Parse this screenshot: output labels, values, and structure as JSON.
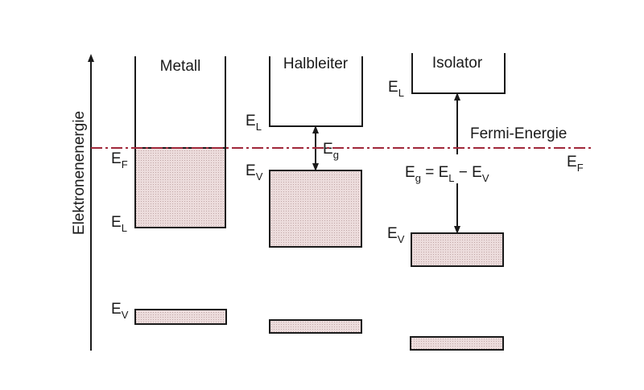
{
  "axis": {
    "label": "Elektronenenergie"
  },
  "columns": {
    "metal": {
      "title": "Metall",
      "ef_label": {
        "main": "E",
        "sub": "F"
      },
      "el_label": {
        "main": "E",
        "sub": "L"
      },
      "ev_label": {
        "main": "E",
        "sub": "V"
      }
    },
    "semiconductor": {
      "title": "Halbleiter",
      "el_label": {
        "main": "E",
        "sub": "L"
      },
      "ev_label": {
        "main": "E",
        "sub": "V"
      },
      "gap_label": {
        "main": "E",
        "sub": "g"
      }
    },
    "insulator": {
      "title": "Isolator",
      "el_label": {
        "main": "E",
        "sub": "L"
      },
      "ev_label": {
        "main": "E",
        "sub": "V"
      },
      "gap_equation": {
        "e1": "E",
        "s1": "g",
        "eq": " = ",
        "e2": "E",
        "s2": "L",
        "minus": " − ",
        "e3": "E",
        "s3": "V"
      }
    }
  },
  "fermi": {
    "label": "Fermi-Energie",
    "ef_label": {
      "main": "E",
      "sub": "F"
    }
  },
  "colors": {
    "band_fill": "#ecdcdc",
    "fermi_line": "#a0283a"
  }
}
